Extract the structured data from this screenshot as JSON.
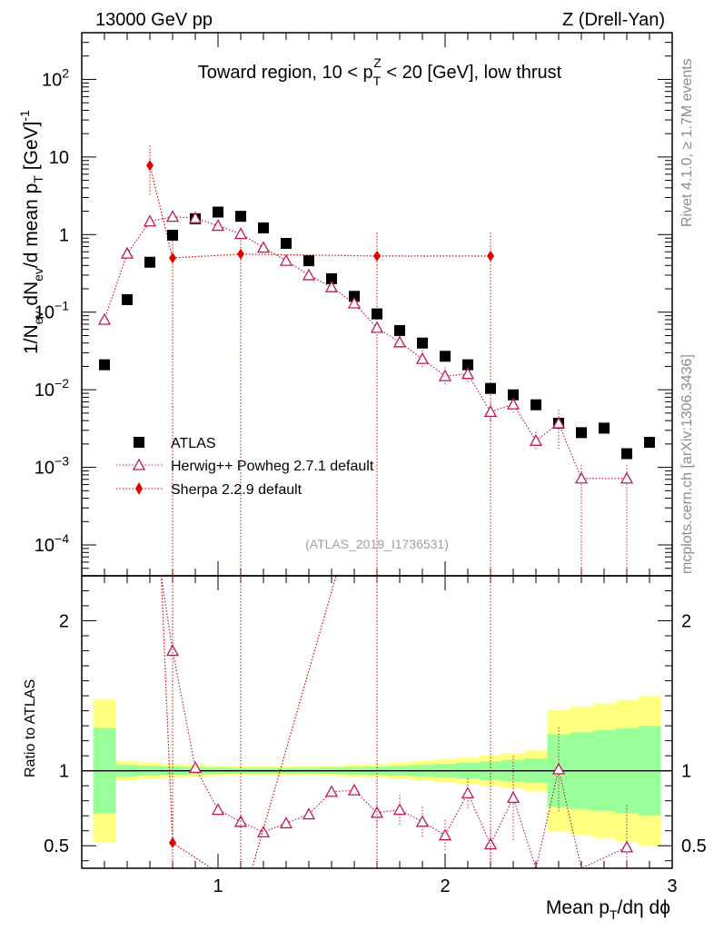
{
  "header": {
    "left": "13000 GeV pp",
    "right": "Z (Drell-Yan)"
  },
  "side_labels": {
    "rivet": "Rivet 4.1.0, ≥ 1.7M events",
    "mcplots": "mcplots.cern.ch [arXiv:1306.3436]"
  },
  "chart_data": {
    "type": "scatter",
    "title": "Toward region, 10 < pTZ < 20 [GeV], low thrust",
    "title_parts": {
      "pre": "Toward region, 10 < p",
      "sub": "T",
      "sup": "Z",
      "post": " < 20 [GeV], low thrust"
    },
    "analysis_id": "(ATLAS_2019_I1736531)",
    "xlabel": "Mean pT/dη dϕ",
    "xlabel_parts": {
      "pre": "Mean p",
      "sub": "T",
      "post": "/dη dϕ"
    },
    "ylabel_parts": {
      "a": "1/N",
      "a_sub": "ev",
      "b": " dN",
      "b_sub": "ev",
      "c": "/d mean p",
      "c_sub": "T",
      "d": " [GeV]",
      "d_sup": "-1"
    },
    "ratio_ylabel": "Ratio to ATLAS",
    "xlim": [
      0.4,
      3.0
    ],
    "ylim": [
      4e-05,
      400
    ],
    "ratio_ylim": [
      0.35,
      2.3
    ],
    "y_log": true,
    "x_ticks": [
      "1",
      "2",
      "3"
    ],
    "y_ticks_main": [
      {
        "base": "10",
        "exp": "2",
        "value": 100
      },
      {
        "base": "10",
        "exp": "",
        "value": 10
      },
      {
        "base": "1",
        "exp": "",
        "value": 1
      },
      {
        "base": "10",
        "exp": "−1",
        "value": 0.1
      },
      {
        "base": "10",
        "exp": "−2",
        "value": 0.01
      },
      {
        "base": "10",
        "exp": "−3",
        "value": 0.001
      },
      {
        "base": "10",
        "exp": "−4",
        "value": 0.0001
      }
    ],
    "y_ticks_ratio": [
      "2",
      "1",
      "0.5"
    ],
    "legend_position": "lower-left",
    "series": [
      {
        "name": "ATLAS",
        "marker": "square",
        "color": "#000000",
        "x": [
          0.5,
          0.6,
          0.7,
          0.8,
          0.9,
          1.0,
          1.1,
          1.2,
          1.3,
          1.4,
          1.5,
          1.6,
          1.7,
          1.8,
          1.9,
          2.0,
          2.1,
          2.2,
          2.3,
          2.4,
          2.5,
          2.6,
          2.7,
          2.8,
          2.9
        ],
        "y": [
          0.021,
          0.145,
          0.44,
          0.98,
          1.6,
          1.95,
          1.72,
          1.22,
          0.77,
          0.46,
          0.27,
          0.16,
          0.095,
          0.058,
          0.04,
          0.027,
          0.021,
          0.0104,
          0.0086,
          0.0064,
          0.0037,
          0.0028,
          0.0032,
          0.0015,
          0.0021
        ]
      },
      {
        "name": "Herwig++ Powheg 2.7.1 default",
        "marker": "open-triangle",
        "color": "#c2185b",
        "x": [
          0.5,
          0.6,
          0.7,
          0.8,
          0.9,
          1.0,
          1.1,
          1.2,
          1.3,
          1.4,
          1.5,
          1.6,
          1.7,
          1.8,
          1.9,
          2.0,
          2.1,
          2.2,
          2.3,
          2.4,
          2.5,
          2.6,
          2.8
        ],
        "y": [
          0.08,
          0.57,
          1.48,
          1.7,
          1.63,
          1.3,
          1.02,
          0.68,
          0.46,
          0.3,
          0.21,
          0.13,
          0.063,
          0.041,
          0.025,
          0.015,
          0.016,
          0.0052,
          0.0065,
          0.0022,
          0.0037,
          0.00072,
          0.00072
        ],
        "ratio": [
          null,
          null,
          null,
          1.8,
          1.02,
          0.74,
          0.66,
          0.59,
          0.65,
          0.71,
          0.86,
          0.87,
          0.72,
          0.74,
          0.66,
          0.57,
          0.85,
          0.51,
          0.82,
          null,
          1.01,
          null,
          0.49
        ]
      },
      {
        "name": "Sherpa 2.2.9 default",
        "marker": "diamond",
        "color": "#e00000",
        "x": [
          0.7,
          0.8,
          1.1,
          1.7,
          2.2
        ],
        "y": [
          7.8,
          0.5,
          0.56,
          0.53,
          0.53
        ],
        "ratio": [
          null,
          0.52,
          null,
          null,
          null
        ]
      }
    ]
  }
}
